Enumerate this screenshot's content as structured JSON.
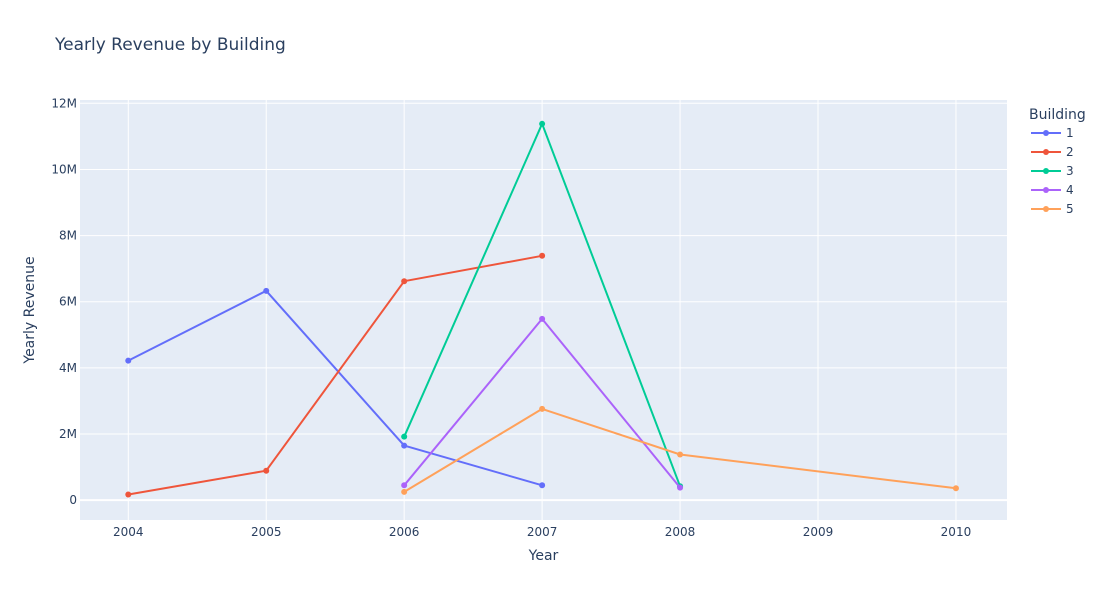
{
  "chart_data": {
    "type": "line",
    "title": "Yearly Revenue by Building",
    "xlabel": "Year",
    "ylabel": "Yearly Revenue",
    "xlim": [
      2003.65,
      2010.37
    ],
    "ylim": [
      -600000,
      12100000
    ],
    "x_ticks": [
      2004,
      2005,
      2006,
      2007,
      2008,
      2009,
      2010
    ],
    "y_ticks": [
      0,
      2000000,
      4000000,
      6000000,
      8000000,
      10000000,
      12000000
    ],
    "y_tick_labels": [
      "0",
      "2M",
      "4M",
      "6M",
      "8M",
      "10M",
      "12M"
    ],
    "legend_title": "Building",
    "legend_position": "right",
    "grid": true,
    "plot_background": "#e5ecf6",
    "series": [
      {
        "name": "1",
        "color": "#636efa",
        "x": [
          2004,
          2005,
          2006,
          2007
        ],
        "y": [
          4220000,
          6330000,
          1650000,
          450000
        ]
      },
      {
        "name": "2",
        "color": "#ef553b",
        "x": [
          2004,
          2005,
          2006,
          2007
        ],
        "y": [
          170000,
          890000,
          6620000,
          7390000
        ]
      },
      {
        "name": "3",
        "color": "#00cc96",
        "x": [
          2006,
          2007,
          2008
        ],
        "y": [
          1920000,
          11380000,
          420000
        ]
      },
      {
        "name": "4",
        "color": "#ab63fa",
        "x": [
          2006,
          2007,
          2008
        ],
        "y": [
          450000,
          5480000,
          380000
        ]
      },
      {
        "name": "5",
        "color": "#ffa15a",
        "x": [
          2006,
          2007,
          2008,
          2010
        ],
        "y": [
          250000,
          2760000,
          1380000,
          360000
        ]
      }
    ]
  }
}
